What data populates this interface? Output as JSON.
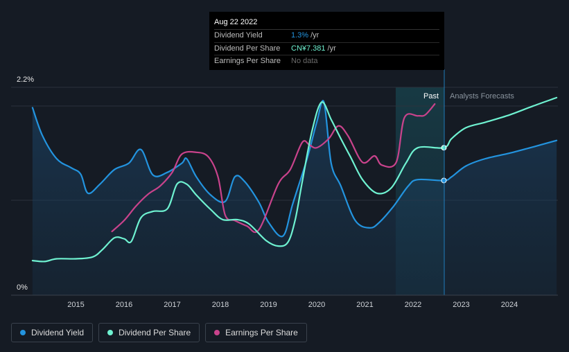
{
  "tooltip": {
    "date": "Aug 22 2022",
    "rows": [
      {
        "label": "Dividend Yield",
        "value": "1.3%",
        "unit": "/yr"
      },
      {
        "label": "Dividend Per Share",
        "value": "CN¥7.381",
        "unit": "/yr"
      },
      {
        "label": "Earnings Per Share",
        "value": "No data"
      }
    ]
  },
  "labels": {
    "y_top": "2.2%",
    "y_bottom": "0%",
    "past": "Past",
    "forecast": "Analysts Forecasts"
  },
  "legend": [
    {
      "label": "Dividend Yield",
      "color": "#2394df"
    },
    {
      "label": "Dividend Per Share",
      "color": "#6ff2d1"
    },
    {
      "label": "Earnings Per Share",
      "color": "#c9438c"
    }
  ],
  "colors": {
    "background": "#151b24",
    "dividend_yield": "#2394df",
    "dividend_per_share": "#6ff2d1",
    "earnings_per_share": "#c9438c",
    "grid": "#2b323c"
  },
  "chart_data": {
    "type": "line",
    "x_ticks": [
      "2015",
      "2016",
      "2017",
      "2018",
      "2019",
      "2020",
      "2021",
      "2022",
      "2023",
      "2024"
    ],
    "x_range": [
      2014.0,
      2025.0
    ],
    "ylim": [
      0,
      2.2
    ],
    "y_unit": "%",
    "past_forecast_split": 2022.64,
    "highlight_band": [
      2021.64,
      2022.64
    ],
    "series": [
      {
        "name": "Dividend Yield",
        "color": "#2394df",
        "points": [
          [
            2014.1,
            2.06
          ],
          [
            2014.3,
            1.76
          ],
          [
            2014.6,
            1.5
          ],
          [
            2014.9,
            1.4
          ],
          [
            2015.1,
            1.33
          ],
          [
            2015.25,
            1.12
          ],
          [
            2015.5,
            1.22
          ],
          [
            2015.8,
            1.38
          ],
          [
            2016.1,
            1.45
          ],
          [
            2016.35,
            1.6
          ],
          [
            2016.6,
            1.32
          ],
          [
            2016.9,
            1.35
          ],
          [
            2017.2,
            1.45
          ],
          [
            2017.3,
            1.5
          ],
          [
            2017.5,
            1.3
          ],
          [
            2017.8,
            1.1
          ],
          [
            2018.1,
            1.03
          ],
          [
            2018.3,
            1.3
          ],
          [
            2018.5,
            1.25
          ],
          [
            2018.8,
            1.02
          ],
          [
            2019.0,
            0.8
          ],
          [
            2019.3,
            0.65
          ],
          [
            2019.5,
            1.0
          ],
          [
            2019.8,
            1.5
          ],
          [
            2020.0,
            1.9
          ],
          [
            2020.15,
            2.12
          ],
          [
            2020.3,
            1.45
          ],
          [
            2020.5,
            1.2
          ],
          [
            2020.8,
            0.82
          ],
          [
            2021.1,
            0.74
          ],
          [
            2021.3,
            0.8
          ],
          [
            2021.6,
            0.98
          ],
          [
            2021.9,
            1.2
          ],
          [
            2022.1,
            1.27
          ],
          [
            2022.64,
            1.26
          ],
          [
            2022.8,
            1.3
          ],
          [
            2023.1,
            1.42
          ],
          [
            2023.5,
            1.5
          ],
          [
            2024.0,
            1.56
          ],
          [
            2024.5,
            1.63
          ],
          [
            2024.98,
            1.7
          ]
        ]
      },
      {
        "name": "Dividend Per Share",
        "color": "#6ff2d1",
        "points": [
          [
            2014.1,
            0.38
          ],
          [
            2014.35,
            0.37
          ],
          [
            2014.6,
            0.4
          ],
          [
            2015.0,
            0.4
          ],
          [
            2015.35,
            0.42
          ],
          [
            2015.55,
            0.5
          ],
          [
            2015.8,
            0.63
          ],
          [
            2016.0,
            0.62
          ],
          [
            2016.15,
            0.59
          ],
          [
            2016.35,
            0.85
          ],
          [
            2016.6,
            0.92
          ],
          [
            2016.9,
            0.95
          ],
          [
            2017.1,
            1.22
          ],
          [
            2017.3,
            1.22
          ],
          [
            2017.5,
            1.1
          ],
          [
            2017.8,
            0.94
          ],
          [
            2018.05,
            0.83
          ],
          [
            2018.35,
            0.83
          ],
          [
            2018.6,
            0.78
          ],
          [
            2018.95,
            0.6
          ],
          [
            2019.2,
            0.54
          ],
          [
            2019.4,
            0.58
          ],
          [
            2019.55,
            0.82
          ],
          [
            2019.7,
            1.25
          ],
          [
            2019.9,
            1.8
          ],
          [
            2020.1,
            2.12
          ],
          [
            2020.3,
            1.93
          ],
          [
            2020.5,
            1.72
          ],
          [
            2020.7,
            1.52
          ],
          [
            2020.95,
            1.27
          ],
          [
            2021.25,
            1.12
          ],
          [
            2021.55,
            1.18
          ],
          [
            2021.85,
            1.45
          ],
          [
            2022.1,
            1.62
          ],
          [
            2022.64,
            1.62
          ],
          [
            2022.8,
            1.72
          ],
          [
            2023.1,
            1.84
          ],
          [
            2023.5,
            1.9
          ],
          [
            2024.0,
            1.98
          ],
          [
            2024.5,
            2.08
          ],
          [
            2024.98,
            2.17
          ]
        ]
      },
      {
        "name": "Earnings Per Share",
        "color": "#c9438c",
        "points": [
          [
            2015.75,
            0.7
          ],
          [
            2016.0,
            0.82
          ],
          [
            2016.25,
            0.98
          ],
          [
            2016.5,
            1.11
          ],
          [
            2016.75,
            1.2
          ],
          [
            2017.0,
            1.35
          ],
          [
            2017.2,
            1.55
          ],
          [
            2017.5,
            1.57
          ],
          [
            2017.75,
            1.52
          ],
          [
            2017.95,
            1.3
          ],
          [
            2018.1,
            0.88
          ],
          [
            2018.3,
            0.82
          ],
          [
            2018.55,
            0.76
          ],
          [
            2018.8,
            0.72
          ],
          [
            2019.2,
            1.22
          ],
          [
            2019.45,
            1.38
          ],
          [
            2019.7,
            1.68
          ],
          [
            2019.85,
            1.65
          ],
          [
            2020.0,
            1.62
          ],
          [
            2020.25,
            1.72
          ],
          [
            2020.45,
            1.86
          ],
          [
            2020.65,
            1.75
          ],
          [
            2020.95,
            1.46
          ],
          [
            2021.2,
            1.53
          ],
          [
            2021.35,
            1.43
          ],
          [
            2021.65,
            1.46
          ],
          [
            2021.82,
            1.95
          ],
          [
            2022.1,
            1.97
          ],
          [
            2022.25,
            1.98
          ],
          [
            2022.45,
            2.1
          ]
        ]
      }
    ]
  }
}
